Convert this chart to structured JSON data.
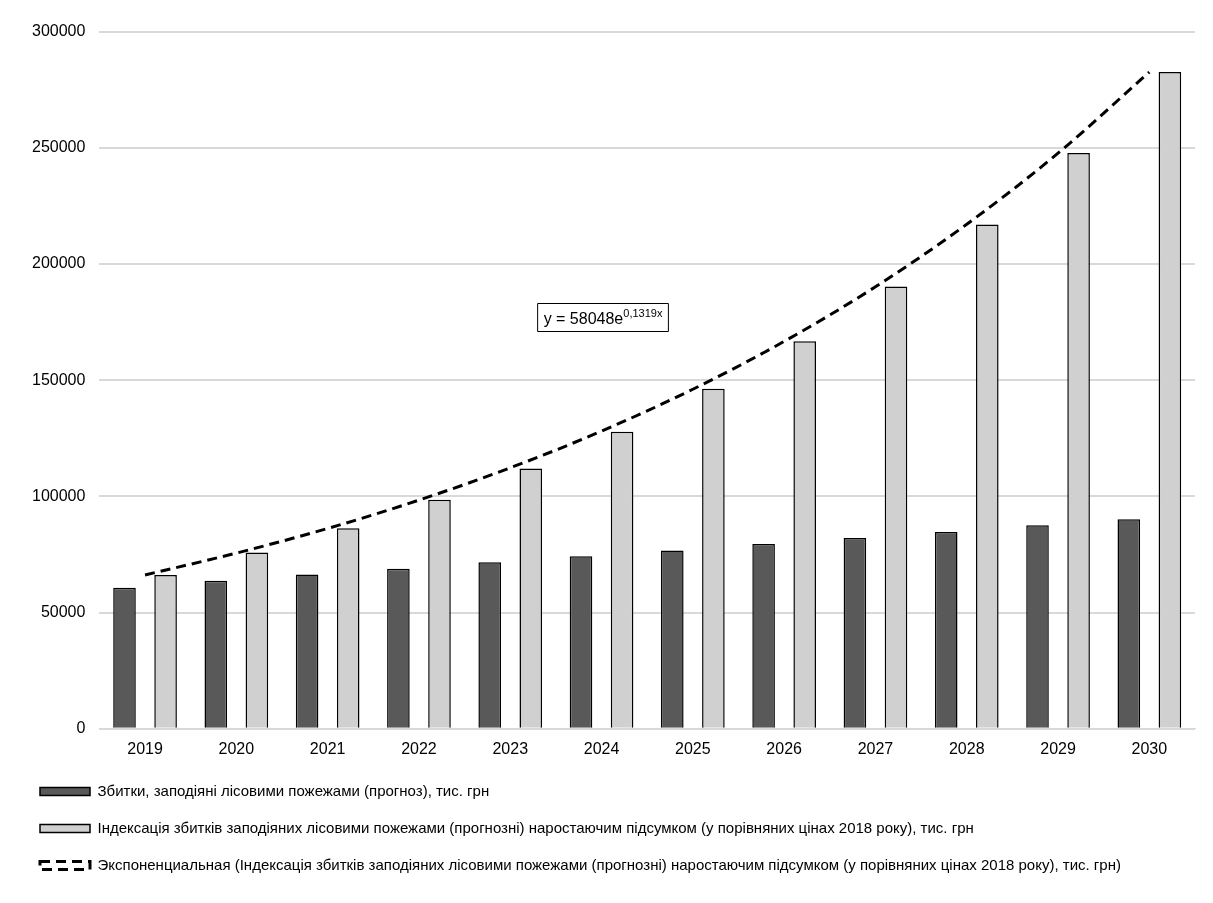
{
  "chart_data": {
    "type": "bar",
    "categories": [
      "2019",
      "2020",
      "2021",
      "2022",
      "2023",
      "2024",
      "2025",
      "2026",
      "2027",
      "2028",
      "2029",
      "2030"
    ],
    "series": [
      {
        "name": "Збитки, заподіяні лісовими пожежами (прогноз), тис. грн",
        "color": "#595959",
        "values": [
          60700,
          63700,
          66400,
          68900,
          71700,
          74300,
          76700,
          79500,
          82100,
          84700,
          87600,
          90200
        ]
      },
      {
        "name": "Індексація збитків заподіяних лісовими пожежами (прогнозні) наростаючим підсумком (у порівняних цінах 2018 року), тис. грн",
        "color": "#d0d0d0",
        "values": [
          66200,
          75900,
          86300,
          98600,
          112000,
          127800,
          146300,
          166800,
          190300,
          217000,
          247800,
          282600
        ]
      },
      {
        "name": "Экспоненциальная (Індексація збитків заподіяних лісовими пожежами (прогнозні) наростаючим підсумком (у порівняних цінах 2018 року), тис. грн)",
        "type": "line",
        "color": "#000000",
        "line_style": "dashed",
        "values": [
          66200,
          75600,
          86200,
          98400,
          112300,
          128100,
          146100,
          166700,
          190200,
          217100,
          247700,
          282600
        ]
      }
    ],
    "ylim": [
      0,
      300000
    ],
    "yticks": [
      0,
      50000,
      100000,
      150000,
      200000,
      250000,
      300000
    ],
    "grid": "y",
    "legend": "bottom",
    "annotations": [
      "y = 58048e$^{0,1319x}$"
    ]
  }
}
